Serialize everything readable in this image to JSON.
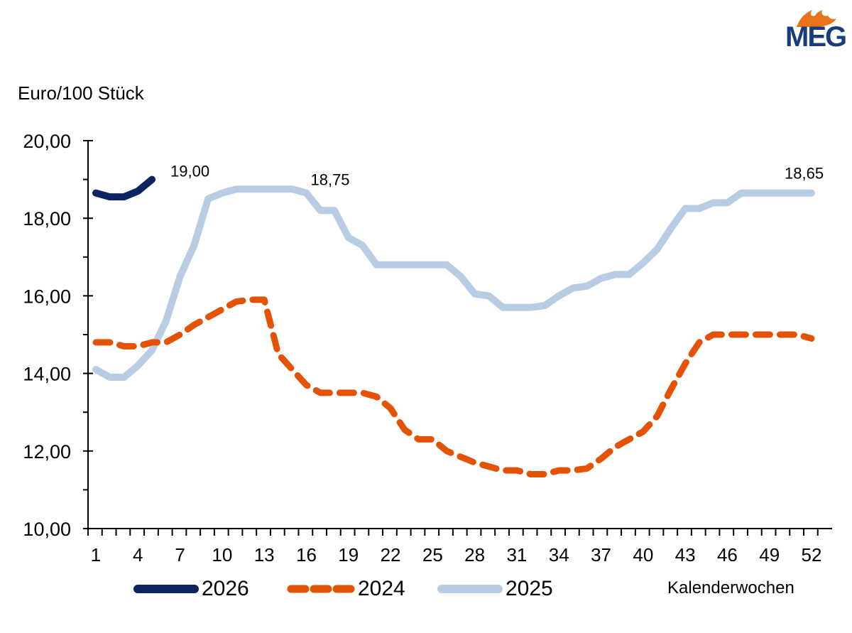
{
  "logo": {
    "text": "MEG",
    "flame_color": "#e8731a",
    "text_color": "#1a3c7c"
  },
  "chart_data": {
    "type": "line",
    "title": "",
    "ylabel": "Euro/100 Stück",
    "xlabel": "Kalenderwochen",
    "ylim": [
      10,
      20
    ],
    "y_ticks": [
      "10,00",
      "12,00",
      "14,00",
      "16,00",
      "18,00",
      "20,00"
    ],
    "y_tick_values": [
      10,
      12,
      14,
      16,
      18,
      20
    ],
    "x_range": [
      1,
      52
    ],
    "x_ticks": [
      "1",
      "4",
      "7",
      "10",
      "13",
      "16",
      "19",
      "22",
      "25",
      "28",
      "31",
      "34",
      "37",
      "40",
      "43",
      "46",
      "49",
      "52"
    ],
    "x_tick_values": [
      1,
      4,
      7,
      10,
      13,
      16,
      19,
      22,
      25,
      28,
      31,
      34,
      37,
      40,
      43,
      46,
      49,
      52
    ],
    "grid": false,
    "legend_position": "bottom",
    "series": [
      {
        "name": "2026",
        "color": "#0d2461",
        "style": "solid",
        "x": [
          1,
          2,
          3,
          4,
          5
        ],
        "values": [
          18.65,
          18.55,
          18.55,
          18.7,
          19.0
        ]
      },
      {
        "name": "2024",
        "color": "#e35205",
        "style": "dashed",
        "x": [
          1,
          2,
          3,
          4,
          5,
          6,
          7,
          8,
          9,
          10,
          11,
          12,
          13,
          14,
          15,
          16,
          17,
          18,
          19,
          20,
          21,
          22,
          23,
          24,
          25,
          26,
          27,
          28,
          29,
          30,
          31,
          32,
          33,
          34,
          35,
          36,
          37,
          38,
          39,
          40,
          41,
          42,
          43,
          44,
          45,
          46,
          47,
          48,
          49,
          50,
          51,
          52
        ],
        "values": [
          14.8,
          14.8,
          14.7,
          14.7,
          14.8,
          14.8,
          15.0,
          15.25,
          15.45,
          15.65,
          15.85,
          15.9,
          15.9,
          14.5,
          14.1,
          13.7,
          13.5,
          13.5,
          13.5,
          13.5,
          13.4,
          13.1,
          12.55,
          12.3,
          12.3,
          12.0,
          11.85,
          11.7,
          11.6,
          11.5,
          11.5,
          11.4,
          11.4,
          11.5,
          11.5,
          11.55,
          11.8,
          12.1,
          12.3,
          12.5,
          12.9,
          13.6,
          14.25,
          14.8,
          15.0,
          15.0,
          15.0,
          15.0,
          15.0,
          15.0,
          15.0,
          14.9
        ]
      },
      {
        "name": "2025",
        "color": "#b8cce4",
        "style": "solid",
        "x": [
          1,
          2,
          3,
          4,
          5,
          6,
          7,
          8,
          9,
          10,
          11,
          12,
          13,
          14,
          15,
          16,
          17,
          18,
          19,
          20,
          21,
          22,
          23,
          24,
          25,
          26,
          27,
          28,
          29,
          30,
          31,
          32,
          33,
          34,
          35,
          36,
          37,
          38,
          39,
          40,
          41,
          42,
          43,
          44,
          45,
          46,
          47,
          48,
          49,
          50,
          51,
          52
        ],
        "values": [
          14.1,
          13.9,
          13.9,
          14.2,
          14.6,
          15.35,
          16.5,
          17.3,
          18.5,
          18.65,
          18.75,
          18.75,
          18.75,
          18.75,
          18.75,
          18.65,
          18.2,
          18.2,
          17.5,
          17.3,
          16.8,
          16.8,
          16.8,
          16.8,
          16.8,
          16.8,
          16.5,
          16.05,
          16.0,
          15.7,
          15.7,
          15.7,
          15.75,
          16.0,
          16.2,
          16.25,
          16.45,
          16.55,
          16.55,
          16.85,
          17.2,
          17.75,
          18.25,
          18.25,
          18.4,
          18.4,
          18.65,
          18.65,
          18.65,
          18.65,
          18.65,
          18.65
        ]
      }
    ],
    "annotations": [
      {
        "text": "19,00",
        "series": "2026",
        "x": 5,
        "y": 19.0
      },
      {
        "text": "18,75",
        "series": "2025",
        "x": 16,
        "y": 18.75
      },
      {
        "text": "18,65",
        "series": "2025",
        "x": 52,
        "y": 18.65
      }
    ]
  }
}
